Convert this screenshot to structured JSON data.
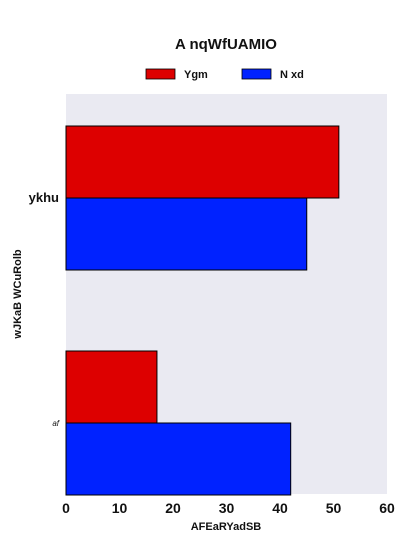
{
  "chart_data": {
    "type": "bar",
    "orientation": "horizontal",
    "title": "A nqWfUAMIO",
    "xlabel": "AFEaRYadSB",
    "ylabel": "wJKaB WCuRolb",
    "categories": [
      "ykhu",
      "af"
    ],
    "series": [
      {
        "name": "Ygm",
        "color": "#dd0000",
        "values": [
          51,
          17
        ]
      },
      {
        "name": "N xd",
        "color": "#0022ff",
        "values": [
          45,
          42
        ]
      }
    ],
    "xlim": [
      0,
      60
    ],
    "xticks": [
      "0",
      "10",
      "20",
      "30",
      "40",
      "50",
      "60"
    ],
    "grid": false,
    "legend_position": "top-center",
    "plot_background": "#eaeaf2",
    "bar_edge_color": "#000000"
  }
}
